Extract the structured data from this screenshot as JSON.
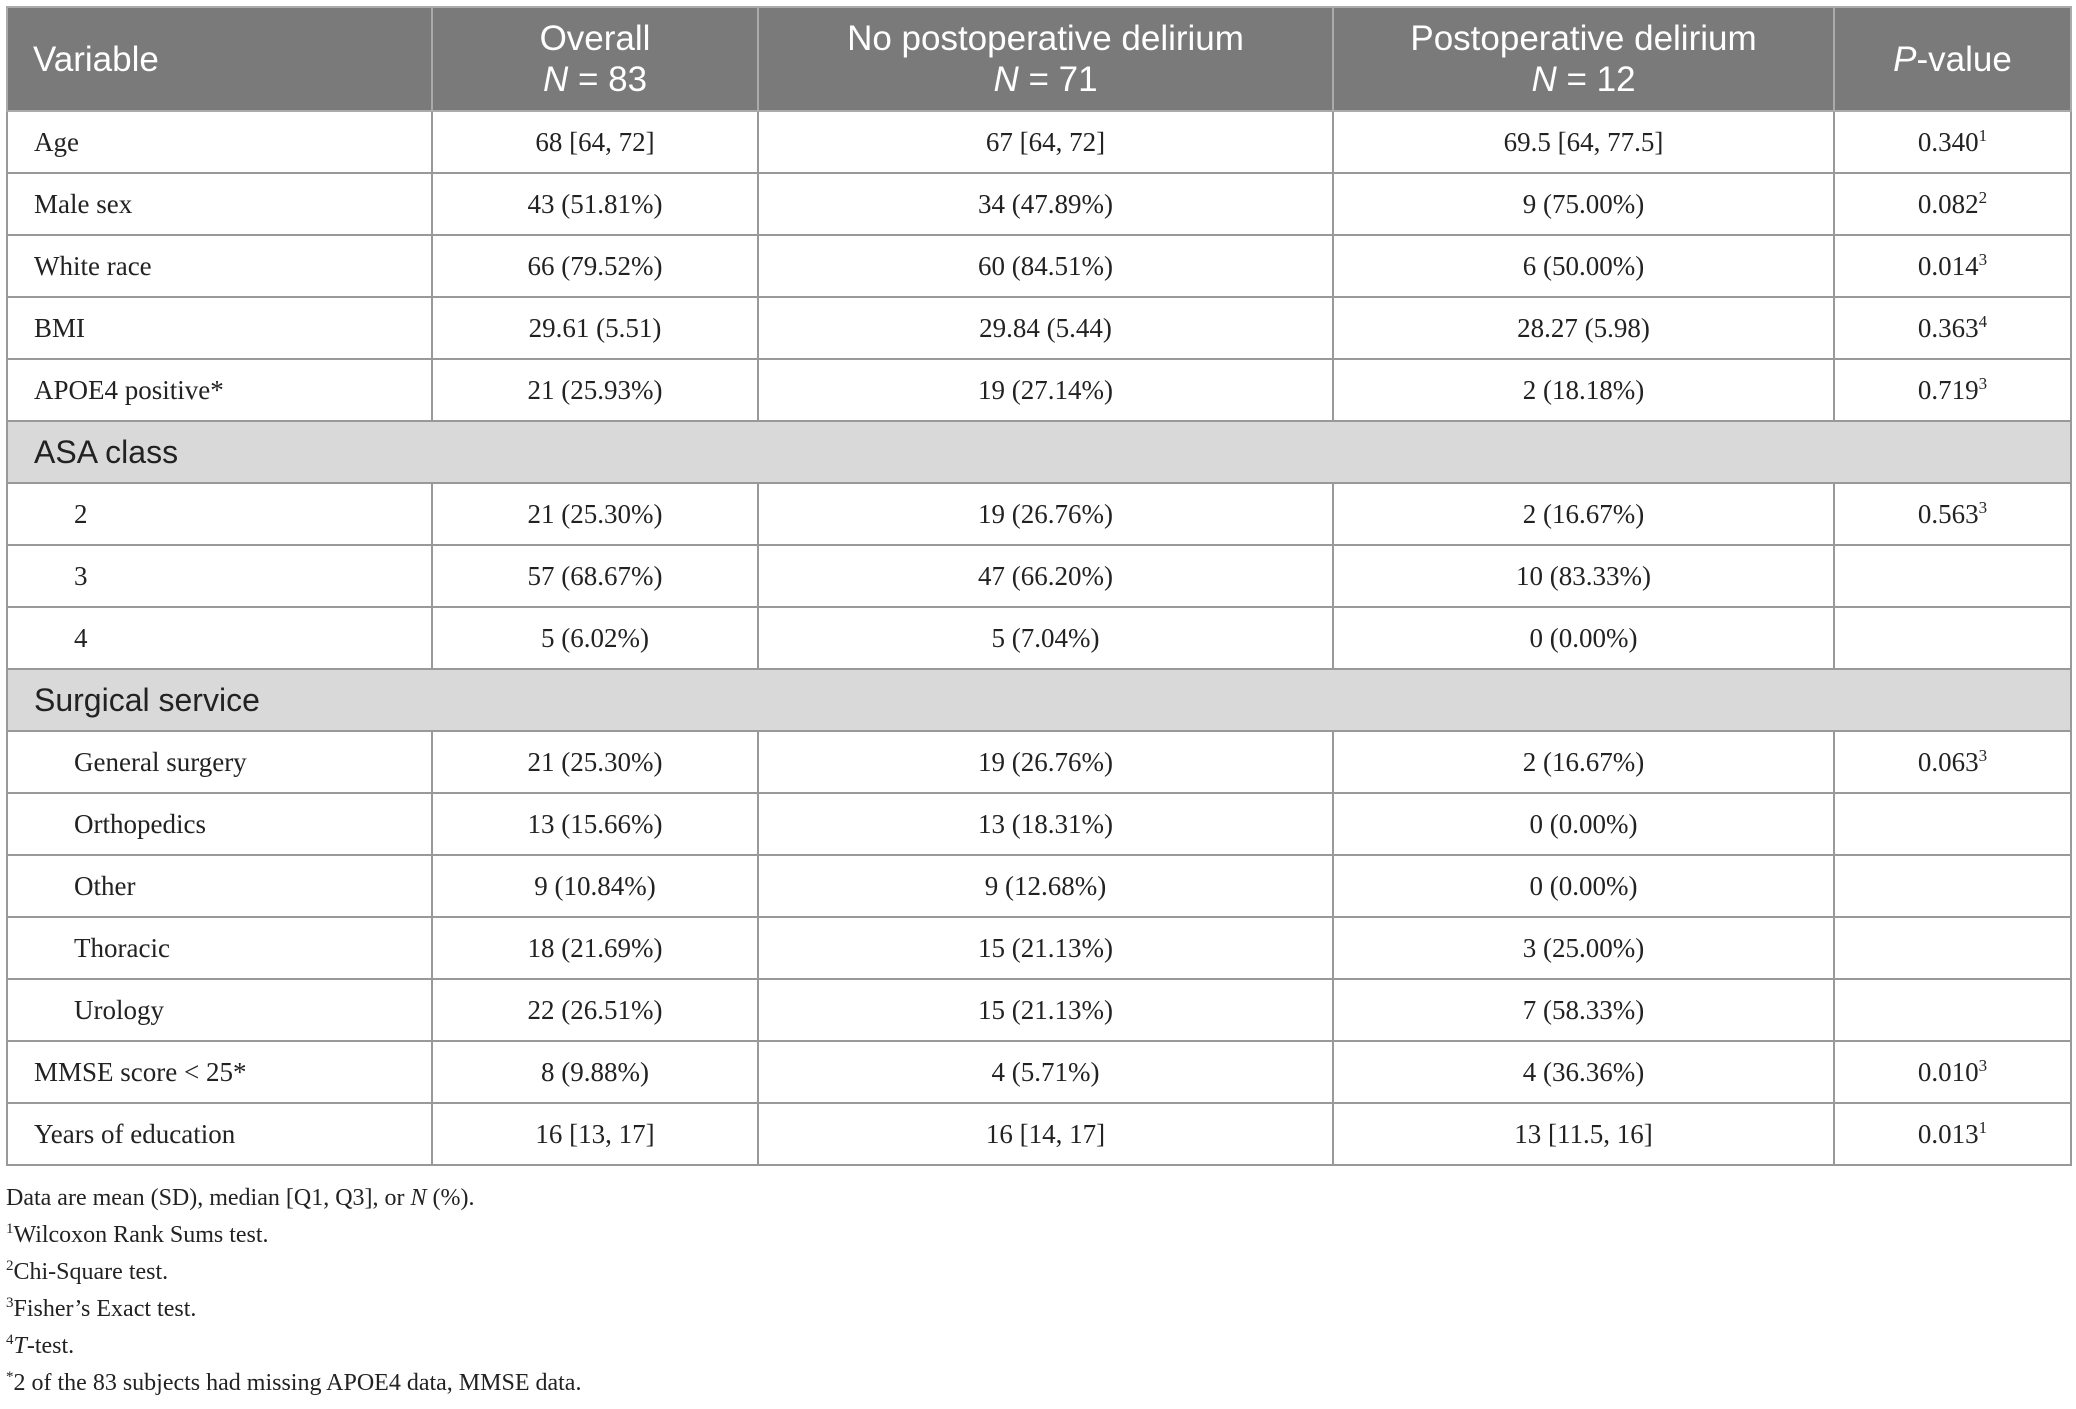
{
  "header": {
    "variable": "Variable",
    "overall": "Overall",
    "overall_n_label": "N",
    "overall_n_value": " = 83",
    "no_delirium": "No postoperative delirium",
    "no_delirium_n_label": "N",
    "no_delirium_n_value": " = 71",
    "delirium": "Postoperative delirium",
    "delirium_n_label": "N",
    "delirium_n_value": " = 12",
    "pvalue_p": "P",
    "pvalue_rest": "-value"
  },
  "rows": [
    {
      "label": "Age",
      "overall": "68 [64, 72]",
      "no": "67 [64, 72]",
      "yes": "69.5 [64, 77.5]",
      "p": "0.340",
      "p_sup": "1"
    },
    {
      "label": "Male sex",
      "overall": "43 (51.81%)",
      "no": "34 (47.89%)",
      "yes": "9 (75.00%)",
      "p": "0.082",
      "p_sup": "2"
    },
    {
      "label": "White race",
      "overall": "66 (79.52%)",
      "no": "60 (84.51%)",
      "yes": "6 (50.00%)",
      "p": "0.014",
      "p_sup": "3"
    },
    {
      "label": "BMI",
      "overall": "29.61 (5.51)",
      "no": "29.84 (5.44)",
      "yes": "28.27 (5.98)",
      "p": "0.363",
      "p_sup": "4"
    },
    {
      "label": "APOE4 positive*",
      "overall": "21 (25.93%)",
      "no": "19 (27.14%)",
      "yes": "2 (18.18%)",
      "p": "0.719",
      "p_sup": "3"
    }
  ],
  "asa": {
    "title": "ASA class",
    "rows": [
      {
        "label": "2",
        "overall": "21 (25.30%)",
        "no": "19 (26.76%)",
        "yes": "2 (16.67%)",
        "p": "0.563",
        "p_sup": "3"
      },
      {
        "label": "3",
        "overall": "57 (68.67%)",
        "no": "47 (66.20%)",
        "yes": "10 (83.33%)",
        "p": "",
        "p_sup": ""
      },
      {
        "label": "4",
        "overall": "5 (6.02%)",
        "no": "5 (7.04%)",
        "yes": "0 (0.00%)",
        "p": "",
        "p_sup": ""
      }
    ]
  },
  "surgical": {
    "title": "Surgical service",
    "rows": [
      {
        "label": "General surgery",
        "overall": "21 (25.30%)",
        "no": "19 (26.76%)",
        "yes": "2 (16.67%)",
        "p": "0.063",
        "p_sup": "3"
      },
      {
        "label": "Orthopedics",
        "overall": "13 (15.66%)",
        "no": "13 (18.31%)",
        "yes": "0 (0.00%)",
        "p": "",
        "p_sup": ""
      },
      {
        "label": "Other",
        "overall": "9 (10.84%)",
        "no": "9 (12.68%)",
        "yes": "0 (0.00%)",
        "p": "",
        "p_sup": ""
      },
      {
        "label": "Thoracic",
        "overall": "18 (21.69%)",
        "no": "15 (21.13%)",
        "yes": "3 (25.00%)",
        "p": "",
        "p_sup": ""
      },
      {
        "label": "Urology",
        "overall": "22 (26.51%)",
        "no": "15 (21.13%)",
        "yes": "7 (58.33%)",
        "p": "",
        "p_sup": ""
      }
    ]
  },
  "tail_rows": [
    {
      "label": "MMSE score < 25*",
      "overall": "8 (9.88%)",
      "no": "4 (5.71%)",
      "yes": "4 (36.36%)",
      "p": "0.010",
      "p_sup": "3"
    },
    {
      "label": "Years of education",
      "overall": "16 [13, 17]",
      "no": "16 [14, 17]",
      "yes": "13 [11.5, 16]",
      "p": "0.013",
      "p_sup": "1"
    }
  ],
  "notes": {
    "line1_a": "Data are mean (SD), median [Q1, Q3], or ",
    "line1_n": "N",
    "line1_b": " (%).",
    "fn1_sup": "1",
    "fn1": "Wilcoxon Rank Sums test.",
    "fn2_sup": "2",
    "fn2": "Chi-Square test.",
    "fn3_sup": "3",
    "fn3": "Fisher’s Exact test.",
    "fn4_sup": "4",
    "fn4_t": "T",
    "fn4": "-test.",
    "fn5_sup": "*",
    "fn5": "2 of the 83 subjects had missing APOE4 data, MMSE data."
  }
}
